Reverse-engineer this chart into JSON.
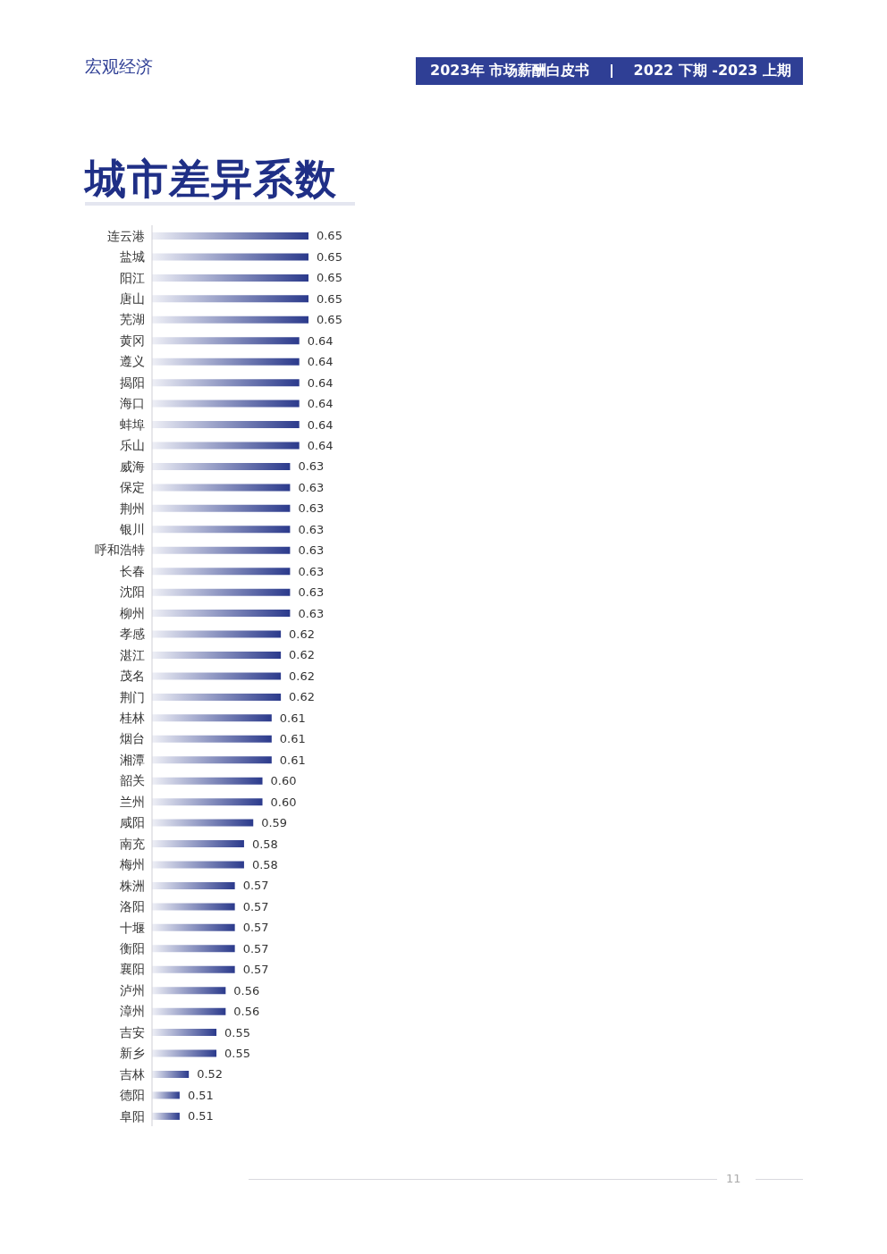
{
  "chart_data": {
    "type": "bar",
    "orientation": "horizontal",
    "title": "城市差异系数",
    "annotations": [
      "宏观经济",
      "2023年 市场薪酬白皮书",
      "2022 下期 -2023 上期",
      "11"
    ],
    "categories": [
      "连云港",
      "盐城",
      "阳江",
      "唐山",
      "芜湖",
      "黄冈",
      "遵义",
      "揭阳",
      "海口",
      "蚌埠",
      "乐山",
      "威海",
      "保定",
      "荆州",
      "银川",
      "呼和浩特",
      "长春",
      "沈阳",
      "柳州",
      "孝感",
      "湛江",
      "茂名",
      "荆门",
      "桂林",
      "烟台",
      "湘潭",
      "韶关",
      "兰州",
      "咸阳",
      "南充",
      "梅州",
      "株洲",
      "洛阳",
      "十堰",
      "衡阳",
      "襄阳",
      "泸州",
      "漳州",
      "吉安",
      "新乡",
      "吉林",
      "德阳",
      "阜阳"
    ],
    "values": [
      0.65,
      0.65,
      0.65,
      0.65,
      0.65,
      0.64,
      0.64,
      0.64,
      0.64,
      0.64,
      0.64,
      0.63,
      0.63,
      0.63,
      0.63,
      0.63,
      0.63,
      0.63,
      0.63,
      0.62,
      0.62,
      0.62,
      0.62,
      0.61,
      0.61,
      0.61,
      0.6,
      0.6,
      0.59,
      0.58,
      0.58,
      0.57,
      0.57,
      0.57,
      0.57,
      0.57,
      0.56,
      0.56,
      0.55,
      0.55,
      0.52,
      0.51,
      0.51
    ],
    "value_labels": [
      "0.65",
      "0.65",
      "0.65",
      "0.65",
      "0.65",
      "0.64",
      "0.64",
      "0.64",
      "0.64",
      "0.64",
      "0.64",
      "0.63",
      "0.63",
      "0.63",
      "0.63",
      "0.63",
      "0.63",
      "0.63",
      "0.63",
      "0.62",
      "0.62",
      "0.62",
      "0.62",
      "0.61",
      "0.61",
      "0.61",
      "0.60",
      "0.60",
      "0.59",
      "0.58",
      "0.58",
      "0.57",
      "0.57",
      "0.57",
      "0.57",
      "0.57",
      "0.56",
      "0.56",
      "0.55",
      "0.55",
      "0.52",
      "0.51",
      "0.51"
    ],
    "color": "#2b3a8c",
    "xlim": [
      0.48,
      0.65
    ],
    "tick_labels": "y",
    "grid": false,
    "legend": false
  }
}
